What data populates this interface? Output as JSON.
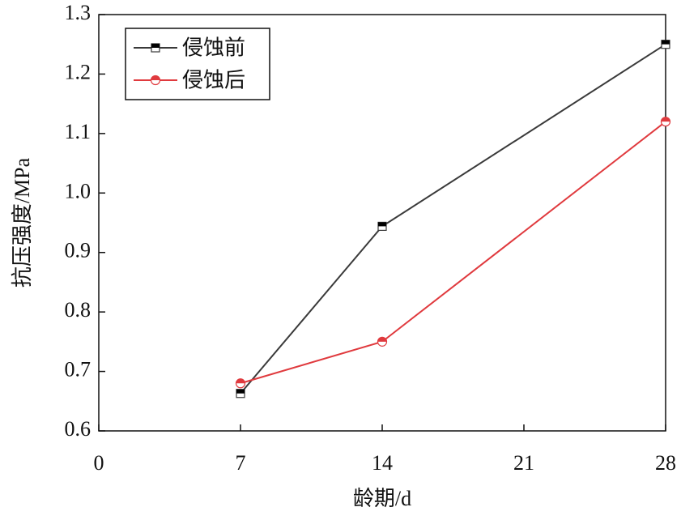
{
  "chart_data": {
    "type": "line",
    "x_label": "龄期/d",
    "y_label": "抗压强度/MPa",
    "x": [
      7,
      14,
      28
    ],
    "series": [
      {
        "name": "侵蚀前",
        "color": "#3a3a3a",
        "marker": "square",
        "values": [
          0.663,
          0.944,
          1.25
        ]
      },
      {
        "name": "侵蚀后",
        "color": "#e03a3e",
        "marker": "circle",
        "values": [
          0.68,
          0.75,
          1.12
        ]
      }
    ],
    "xlim": [
      0,
      28
    ],
    "xticks": [
      0,
      7,
      14,
      21,
      28
    ],
    "ylim": [
      0.6,
      1.3
    ],
    "yticks": [
      0.6,
      0.7,
      0.8,
      0.9,
      {
        "value": 1,
        "label": "1.0"
      },
      1.1,
      1.2,
      1.3
    ],
    "legend": "upper left"
  }
}
